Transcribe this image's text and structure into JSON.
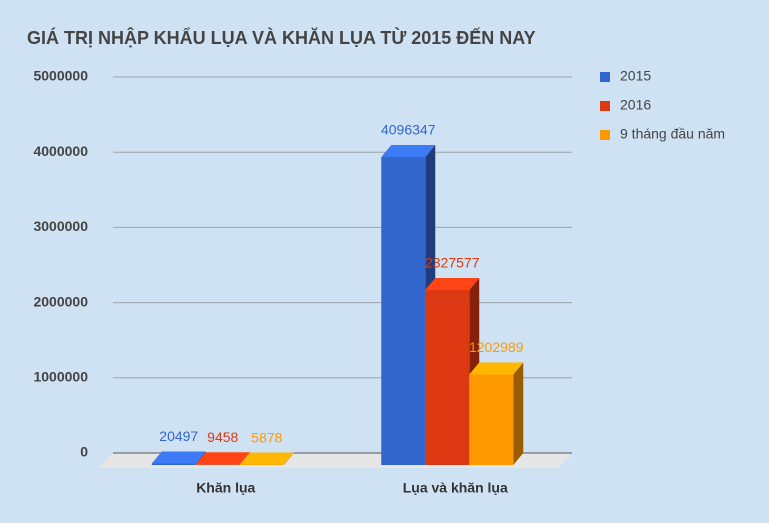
{
  "chart_data": {
    "type": "bar3d",
    "title": "GIÁ TRỊ NHẬP KHẨU LỤA VÀ KHĂN LỤA TỪ 2015 ĐẾN NAY",
    "categories": [
      "Khăn lụa",
      "Lụa và khăn lụa"
    ],
    "series": [
      {
        "name": "2015",
        "color": "#3366cc",
        "values": [
          20497,
          4096347
        ]
      },
      {
        "name": "2016",
        "color": "#dc3912",
        "values": [
          9458,
          2327577
        ]
      },
      {
        "name": "9 tháng đầu năm",
        "color": "#ff9900",
        "values": [
          5878,
          1202989
        ]
      }
    ],
    "ylim": [
      0,
      5000000
    ],
    "yticks": [
      0,
      1000000,
      2000000,
      3000000,
      4000000,
      5000000
    ],
    "grid": true,
    "legend": "right"
  }
}
